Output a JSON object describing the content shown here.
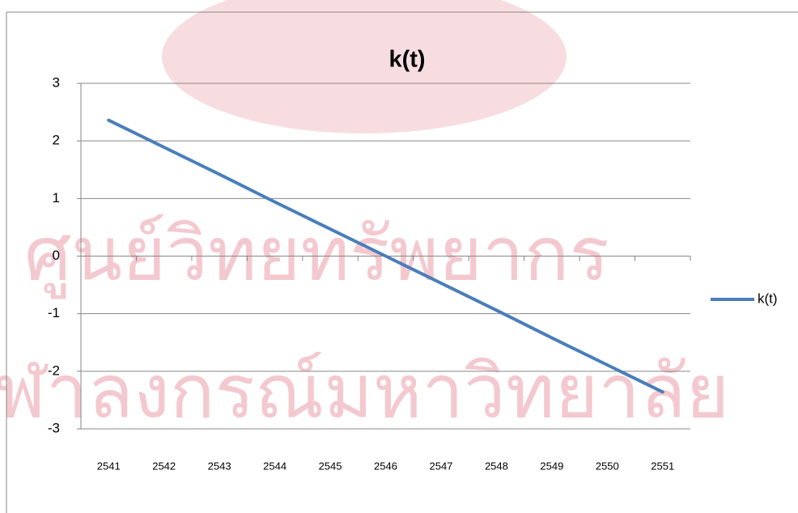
{
  "watermark": [
    "ศูนย์วิทยทรัพยากร",
    "จุฬาลงกรณ์มหาวิทยาลัย"
  ],
  "chart_data": {
    "type": "line",
    "title": "k(t)",
    "categories": [
      "2541",
      "2542",
      "2543",
      "2544",
      "2545",
      "2546",
      "2547",
      "2548",
      "2549",
      "2550",
      "2551"
    ],
    "series": [
      {
        "name": "k(t)",
        "color": "#4a7ebb",
        "values": [
          2.36,
          1.89,
          1.42,
          0.94,
          0.47,
          0,
          -0.47,
          -0.94,
          -1.42,
          -1.89,
          -2.36
        ]
      }
    ],
    "ylim": [
      -3,
      3
    ],
    "yticks": [
      -3,
      -2,
      -1,
      0,
      1,
      2,
      3
    ],
    "grid": true,
    "legend": "right"
  }
}
